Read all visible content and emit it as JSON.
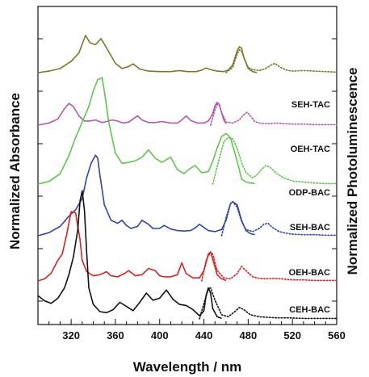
{
  "chart_data": {
    "type": "line",
    "xlabel": "Wavelength / nm",
    "ylabel": "Normalized Absorbance",
    "ylabel_right": "Normalized Photoluminescence",
    "xlim": [
      290,
      560
    ],
    "xticks": [
      320,
      360,
      400,
      440,
      480,
      520,
      560
    ],
    "grid": false,
    "series": [
      {
        "name": "SEH-TAC",
        "color": "#7a7a2a",
        "offset": 5,
        "absorbance": {
          "x": [
            290,
            300,
            310,
            320,
            327,
            333,
            337,
            342,
            347,
            352,
            360,
            366,
            372,
            376,
            382,
            390,
            400,
            410,
            418,
            425,
            433,
            438,
            442,
            446,
            452,
            458,
            462,
            466,
            470,
            472,
            474,
            476,
            480,
            484,
            488
          ],
          "y": [
            0,
            0.03,
            0.08,
            0.22,
            0.38,
            0.72,
            0.58,
            0.54,
            0.66,
            0.48,
            0.18,
            0.08,
            0.12,
            0.17,
            0.07,
            0.03,
            0.02,
            0.02,
            0.04,
            0.02,
            0.02,
            0.05,
            0.09,
            0.06,
            0.03,
            0.02,
            0.05,
            0.15,
            0.42,
            0.5,
            0.48,
            0.3,
            0.08,
            0.02,
            0
          ]
        },
        "photoluminescence": {
          "x": [
            460,
            466,
            470,
            472,
            474,
            476,
            480,
            484,
            490,
            496,
            500,
            504,
            508,
            514,
            520,
            530,
            540,
            550,
            560
          ],
          "y": [
            0,
            0.1,
            0.36,
            0.44,
            0.42,
            0.3,
            0.1,
            0.06,
            0.04,
            0.08,
            0.14,
            0.18,
            0.12,
            0.05,
            0.03,
            0.04,
            0.03,
            0.02,
            0.01
          ]
        }
      },
      {
        "name": "OEH-TAC",
        "color": "#b455b4",
        "offset": 4,
        "absorbance": {
          "x": [
            290,
            300,
            308,
            314,
            318,
            322,
            327,
            332,
            337,
            342,
            348,
            352,
            357,
            362,
            367,
            372,
            376,
            380,
            384,
            390,
            396,
            402,
            410,
            416,
            420,
            424,
            428,
            434,
            440,
            444,
            448,
            450,
            452,
            454,
            456,
            458,
            460
          ],
          "y": [
            0,
            0.04,
            0.12,
            0.32,
            0.42,
            0.36,
            0.18,
            0.08,
            0.08,
            0.1,
            0.05,
            0.07,
            0.1,
            0.08,
            0.04,
            0.06,
            0.12,
            0.18,
            0.1,
            0.05,
            0.05,
            0.07,
            0.04,
            0.04,
            0.1,
            0.18,
            0.09,
            0.04,
            0.04,
            0.08,
            0.22,
            0.38,
            0.44,
            0.4,
            0.24,
            0.1,
            0.03
          ]
        },
        "photoluminescence": {
          "x": [
            446,
            450,
            452,
            454,
            456,
            460,
            466,
            472,
            476,
            479,
            482,
            486,
            490,
            496,
            500,
            506,
            512,
            520,
            530,
            540,
            550,
            560
          ],
          "y": [
            0,
            0.3,
            0.4,
            0.38,
            0.24,
            0.06,
            0.04,
            0.1,
            0.2,
            0.25,
            0.18,
            0.07,
            0.04,
            0.03,
            0.03,
            0.04,
            0.03,
            0.02,
            0.02,
            0.01,
            0.01,
            0.01
          ]
        }
      },
      {
        "name": "ODP-BAC",
        "color": "#5cc84a",
        "offset": 3,
        "absorbance": {
          "x": [
            290,
            300,
            310,
            318,
            324,
            330,
            336,
            340,
            344,
            348,
            350,
            354,
            360,
            366,
            372,
            378,
            384,
            390,
            396,
            402,
            406,
            410,
            416,
            422,
            426,
            432,
            438,
            444,
            448,
            452,
            456,
            460,
            464,
            468,
            472,
            474,
            478,
            482,
            486
          ],
          "y": [
            0,
            0.05,
            0.2,
            0.55,
            0.9,
            1.2,
            1.5,
            1.8,
            2.02,
            2.06,
            1.8,
            1.2,
            0.6,
            0.4,
            0.42,
            0.45,
            0.52,
            0.66,
            0.5,
            0.42,
            0.47,
            0.52,
            0.28,
            0.2,
            0.28,
            0.36,
            0.22,
            0.24,
            0.44,
            0.7,
            0.92,
            0.98,
            0.9,
            0.6,
            0.28,
            0.1,
            0.04,
            0.02,
            0.01
          ]
        },
        "photoluminescence": {
          "x": [
            448,
            454,
            458,
            462,
            466,
            470,
            474,
            478,
            484,
            488,
            492,
            496,
            500,
            506,
            512,
            520,
            530,
            540,
            550,
            560
          ],
          "y": [
            0,
            0.5,
            0.82,
            0.9,
            0.88,
            0.7,
            0.42,
            0.22,
            0.12,
            0.18,
            0.28,
            0.36,
            0.32,
            0.2,
            0.12,
            0.06,
            0.04,
            0.02,
            0.01,
            0.01
          ]
        }
      },
      {
        "name": "SEH-BAC",
        "color": "#3045a8",
        "offset": 2,
        "absorbance": {
          "x": [
            290,
            300,
            310,
            318,
            324,
            330,
            334,
            338,
            342,
            344,
            346,
            350,
            356,
            362,
            366,
            370,
            374,
            380,
            384,
            390,
            394,
            400,
            404,
            410,
            416,
            422,
            428,
            432,
            436,
            440,
            444,
            450,
            456,
            460,
            464,
            466,
            470,
            474,
            478,
            482,
            486
          ],
          "y": [
            0,
            0.06,
            0.18,
            0.38,
            0.5,
            0.72,
            1.12,
            1.4,
            1.56,
            1.5,
            1.18,
            0.6,
            0.3,
            0.24,
            0.3,
            0.2,
            0.14,
            0.18,
            0.3,
            0.22,
            0.14,
            0.14,
            0.2,
            0.13,
            0.1,
            0.09,
            0.1,
            0.15,
            0.22,
            0.16,
            0.1,
            0.08,
            0.12,
            0.3,
            0.62,
            0.66,
            0.6,
            0.3,
            0.1,
            0.04,
            0.02
          ]
        },
        "photoluminescence": {
          "x": [
            456,
            460,
            464,
            466,
            470,
            474,
            478,
            484,
            490,
            494,
            498,
            502,
            508,
            514,
            520,
            530,
            540,
            550,
            560
          ],
          "y": [
            0,
            0.35,
            0.62,
            0.66,
            0.55,
            0.28,
            0.12,
            0.08,
            0.14,
            0.22,
            0.24,
            0.16,
            0.08,
            0.05,
            0.03,
            0.02,
            0.02,
            0.01,
            0.01
          ]
        }
      },
      {
        "name": "OEH-BAC",
        "color": "#e02020",
        "offset": 1,
        "absorbance": {
          "x": [
            290,
            296,
            302,
            308,
            312,
            316,
            320,
            324,
            328,
            330,
            334,
            340,
            346,
            352,
            356,
            362,
            368,
            372,
            378,
            384,
            390,
            396,
            400,
            404,
            410,
            416,
            420,
            424,
            430,
            436,
            440,
            444,
            446,
            448,
            452,
            456,
            460
          ],
          "y": [
            0,
            0.04,
            0.15,
            0.4,
            0.52,
            0.9,
            1.34,
            1.32,
            0.8,
            0.4,
            0.18,
            0.1,
            0.12,
            0.18,
            0.1,
            0.08,
            0.14,
            0.2,
            0.1,
            0.12,
            0.24,
            0.2,
            0.1,
            0.08,
            0.08,
            0.12,
            0.35,
            0.14,
            0.06,
            0.06,
            0.2,
            0.52,
            0.56,
            0.42,
            0.12,
            0.04,
            0.01
          ]
        },
        "photoluminescence": {
          "x": [
            438,
            442,
            446,
            448,
            452,
            458,
            464,
            470,
            474,
            478,
            484,
            490,
            496,
            502,
            510,
            520,
            530,
            540,
            550,
            560
          ],
          "y": [
            0,
            0.4,
            0.56,
            0.52,
            0.2,
            0.06,
            0.04,
            0.14,
            0.28,
            0.2,
            0.08,
            0.05,
            0.04,
            0.05,
            0.04,
            0.02,
            0.02,
            0.01,
            0.01,
            0.01
          ]
        }
      },
      {
        "name": "CEH-BAC",
        "color": "#111111",
        "offset": 0,
        "absorbance": {
          "x": [
            290,
            296,
            302,
            308,
            314,
            318,
            322,
            326,
            328,
            330,
            332,
            334,
            336,
            340,
            346,
            352,
            358,
            364,
            370,
            376,
            382,
            388,
            394,
            400,
            406,
            412,
            418,
            424,
            430,
            436,
            440,
            442,
            444,
            446,
            448,
            452,
            456
          ],
          "y": [
            0.45,
            0.35,
            0.3,
            0.4,
            0.6,
            0.86,
            1.2,
            1.72,
            2.28,
            2.48,
            2.1,
            1.3,
            0.6,
            0.28,
            0.14,
            0.12,
            0.18,
            0.32,
            0.24,
            0.16,
            0.32,
            0.5,
            0.36,
            0.4,
            0.56,
            0.38,
            0.28,
            0.26,
            0.18,
            0.06,
            0.16,
            0.46,
            0.6,
            0.5,
            0.2,
            0.04,
            0.01
          ]
        },
        "photoluminescence": {
          "x": [
            436,
            440,
            444,
            446,
            450,
            456,
            462,
            468,
            472,
            476,
            482,
            490,
            498,
            506,
            516,
            530,
            545,
            560
          ],
          "y": [
            0,
            0.3,
            0.58,
            0.6,
            0.36,
            0.08,
            0.04,
            0.14,
            0.22,
            0.18,
            0.08,
            0.04,
            0.03,
            0.02,
            0.02,
            0.01,
            0.01,
            0.01
          ]
        }
      }
    ]
  }
}
